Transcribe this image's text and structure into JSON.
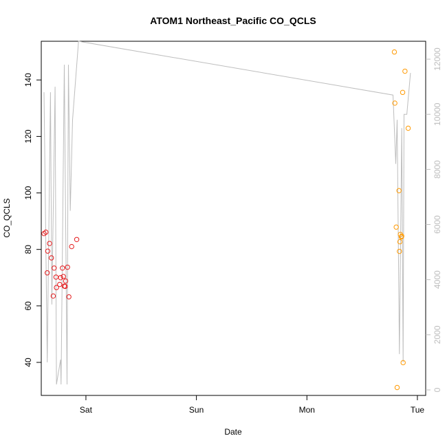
{
  "chart_data": {
    "type": "scatter",
    "title": "ATOM1 Northeast_Pacific CO_QCLS",
    "xlabel": "Date",
    "ylabel": "CO_QCLS",
    "x_ticks": [
      {
        "label": "Sat",
        "value": 24.0
      },
      {
        "label": "Sun",
        "value": 48.0
      },
      {
        "label": "Mon",
        "value": 72.0
      },
      {
        "label": "Tue",
        "value": 96.0
      }
    ],
    "xlim": [
      14.3,
      97.8
    ],
    "ylim": [
      28.3,
      153.7
    ],
    "yticks": [
      40,
      60,
      80,
      100,
      120,
      140
    ],
    "y2lim": [
      -200,
      12650
    ],
    "y2ticks": [
      0,
      2000,
      4000,
      6000,
      8000,
      10000,
      12000
    ],
    "grid": false,
    "colors": {
      "series_red": "#e41a1c",
      "series_orange": "#ff9900",
      "altitude_line": "#bdbdbd"
    },
    "series": [
      {
        "color": "#e41a1c",
        "points": [
          {
            "x": 14.9,
            "y": 85.6
          },
          {
            "x": 15.3,
            "y": 86.1
          },
          {
            "x": 15.6,
            "y": 71.7
          },
          {
            "x": 15.7,
            "y": 79.4
          },
          {
            "x": 16.1,
            "y": 82.1
          },
          {
            "x": 16.5,
            "y": 77.0
          },
          {
            "x": 16.9,
            "y": 63.5
          },
          {
            "x": 17.1,
            "y": 73.4
          },
          {
            "x": 17.5,
            "y": 70.2
          },
          {
            "x": 17.6,
            "y": 66.5
          },
          {
            "x": 18.3,
            "y": 67.6
          },
          {
            "x": 18.5,
            "y": 70.0
          },
          {
            "x": 18.9,
            "y": 73.4
          },
          {
            "x": 19.1,
            "y": 70.4
          },
          {
            "x": 19.3,
            "y": 67.0
          },
          {
            "x": 19.5,
            "y": 66.9
          },
          {
            "x": 19.6,
            "y": 68.8
          },
          {
            "x": 20.0,
            "y": 73.7
          },
          {
            "x": 20.3,
            "y": 63.2
          },
          {
            "x": 20.9,
            "y": 81.0
          },
          {
            "x": 22.0,
            "y": 83.5
          }
        ]
      },
      {
        "color": "#ff9900",
        "points": [
          {
            "x": 91.0,
            "y": 149.9
          },
          {
            "x": 91.1,
            "y": 131.8
          },
          {
            "x": 91.4,
            "y": 87.9
          },
          {
            "x": 91.6,
            "y": 31.1
          },
          {
            "x": 92.0,
            "y": 100.8
          },
          {
            "x": 92.1,
            "y": 79.3
          },
          {
            "x": 92.2,
            "y": 82.7
          },
          {
            "x": 92.3,
            "y": 85.3
          },
          {
            "x": 92.5,
            "y": 84.4
          },
          {
            "x": 92.6,
            "y": 84.7
          },
          {
            "x": 92.8,
            "y": 135.6
          },
          {
            "x": 92.9,
            "y": 39.9
          },
          {
            "x": 93.3,
            "y": 143.1
          },
          {
            "x": 94.0,
            "y": 122.9
          }
        ]
      }
    ],
    "altitude_line": [
      {
        "x": 14.9,
        "y2": 10800
      },
      {
        "x": 15.6,
        "y2": 1000
      },
      {
        "x": 16.3,
        "y2": 10800
      },
      {
        "x": 16.6,
        "y2": 3100
      },
      {
        "x": 17.3,
        "y2": 11000
      },
      {
        "x": 17.6,
        "y2": 200
      },
      {
        "x": 18.5,
        "y2": 1100
      },
      {
        "x": 18.6,
        "y2": 200
      },
      {
        "x": 19.3,
        "y2": 11800
      },
      {
        "x": 19.9,
        "y2": 200
      },
      {
        "x": 20.2,
        "y2": 11800
      },
      {
        "x": 20.6,
        "y2": 6500
      },
      {
        "x": 21.1,
        "y2": 9800
      },
      {
        "x": 22.4,
        "y2": 12650
      },
      {
        "x": 90.7,
        "y2": 10700
      },
      {
        "x": 91.3,
        "y2": 8200
      },
      {
        "x": 91.6,
        "y2": 9800
      },
      {
        "x": 92.1,
        "y2": 1300
      },
      {
        "x": 92.6,
        "y2": 9500
      },
      {
        "x": 92.9,
        "y2": 1000
      },
      {
        "x": 93.1,
        "y2": 10000
      },
      {
        "x": 93.7,
        "y2": 10000
      },
      {
        "x": 94.5,
        "y2": 11500
      }
    ]
  }
}
